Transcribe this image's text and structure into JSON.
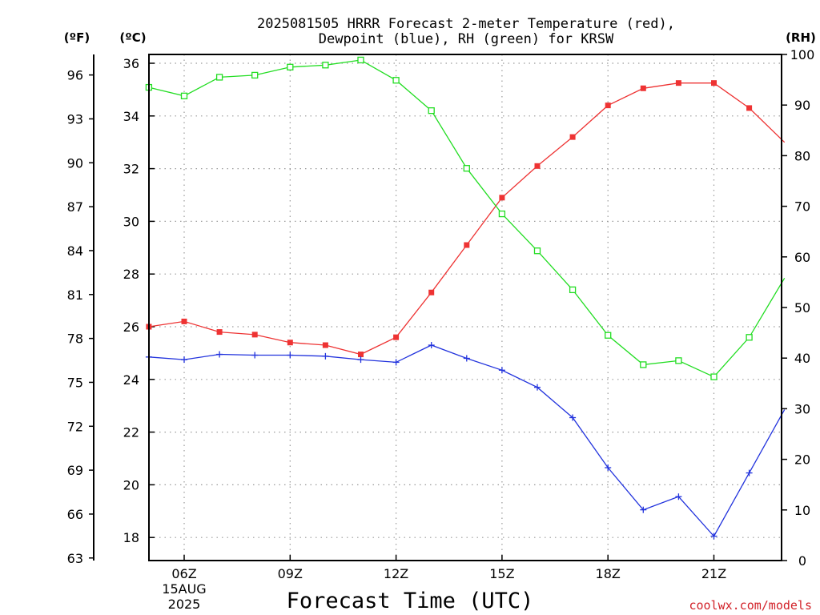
{
  "chart_data": {
    "type": "line",
    "title_line1": "2025081505 HRRR Forecast 2-meter Temperature (red),",
    "title_line2": "Dewpoint (blue), RH (green) for KRSW",
    "xlabel": "Forecast Time (UTC)",
    "credit": "coolwx.com/models",
    "axis_units": {
      "left_f": "(ºF)",
      "left_c": "(ºC)",
      "right_rh": "(RH)"
    },
    "x_hours": [
      5,
      6,
      7,
      8,
      9,
      10,
      11,
      12,
      13,
      14,
      15,
      16,
      17,
      18,
      19,
      20,
      21,
      22,
      23
    ],
    "x_ticks": [
      {
        "hour": 6,
        "label": "06Z",
        "sub1": "15AUG",
        "sub2": "2025"
      },
      {
        "hour": 9,
        "label": "09Z"
      },
      {
        "hour": 12,
        "label": "12Z"
      },
      {
        "hour": 15,
        "label": "15Z"
      },
      {
        "hour": 18,
        "label": "18Z"
      },
      {
        "hour": 21,
        "label": "21Z"
      }
    ],
    "celsius_axis": {
      "ticks": [
        "36",
        "34",
        "32",
        "30",
        "28",
        "26",
        "24",
        "22",
        "20",
        "18"
      ]
    },
    "fahrenheit_axis": {
      "ticks": [
        "96",
        "93",
        "90",
        "87",
        "84",
        "81",
        "78",
        "75",
        "72",
        "69",
        "66",
        "63"
      ]
    },
    "rh_axis": {
      "range": [
        0,
        100
      ],
      "ticks": [
        "100",
        "90",
        "80",
        "70",
        "60",
        "50",
        "40",
        "30",
        "20",
        "10",
        "0"
      ]
    },
    "series": [
      {
        "name": "Temperature",
        "axis": "celsius",
        "color": "#ee3333",
        "marker": "filled-square",
        "values": [
          26.0,
          26.2,
          25.8,
          25.7,
          25.4,
          25.3,
          24.95,
          25.6,
          27.3,
          29.1,
          30.9,
          32.1,
          33.2,
          34.4,
          35.05,
          35.25,
          35.25,
          34.3,
          33.0
        ]
      },
      {
        "name": "Dewpoint",
        "axis": "celsius",
        "color": "#2233dd",
        "marker": "plus",
        "values": [
          24.85,
          24.75,
          24.95,
          24.92,
          24.92,
          24.88,
          24.75,
          24.65,
          25.3,
          24.8,
          24.35,
          23.7,
          22.55,
          20.65,
          19.05,
          19.55,
          18.05,
          20.45,
          22.85
        ]
      },
      {
        "name": "RH",
        "axis": "rh",
        "color": "#22dd22",
        "marker": "open-square",
        "values": [
          93.5,
          91.8,
          95.5,
          95.9,
          97.5,
          97.9,
          98.9,
          94.9,
          88.9,
          77.5,
          68.5,
          61.2,
          53.5,
          44.5,
          38.7,
          39.5,
          36.3,
          44.1,
          55.8
        ]
      }
    ]
  }
}
